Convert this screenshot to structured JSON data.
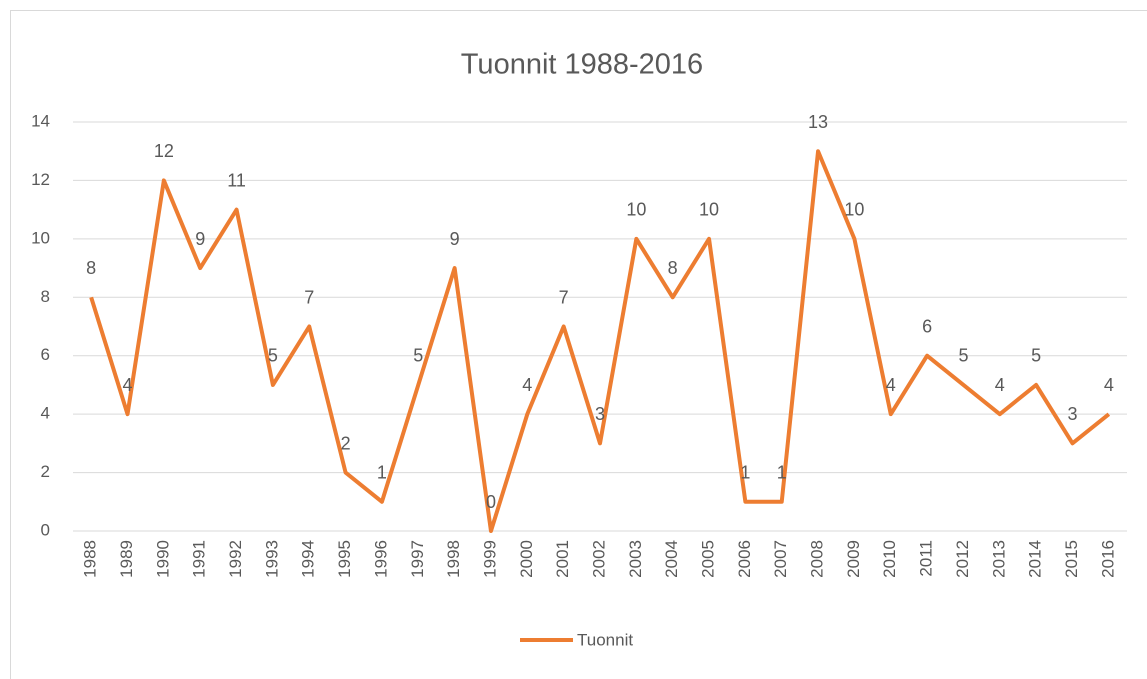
{
  "chart_data": {
    "type": "line",
    "title": "Tuonnit 1988-2016",
    "categories": [
      "1988",
      "1989",
      "1990",
      "1991",
      "1992",
      "1993",
      "1994",
      "1995",
      "1996",
      "1997",
      "1998",
      "1999",
      "2000",
      "2001",
      "2002",
      "2003",
      "2004",
      "2005",
      "2006",
      "2007",
      "2008",
      "2009",
      "2010",
      "2011",
      "2012",
      "2013",
      "2014",
      "2015",
      "2016"
    ],
    "series": [
      {
        "name": "Tuonnit",
        "color": "#ED7D31",
        "values": [
          8,
          4,
          12,
          9,
          11,
          5,
          7,
          2,
          1,
          5,
          9,
          0,
          4,
          7,
          3,
          10,
          8,
          10,
          1,
          1,
          13,
          10,
          4,
          6,
          5,
          4,
          5,
          3,
          4
        ]
      }
    ],
    "ylim": [
      0,
      14
    ],
    "yticks": [
      0,
      2,
      4,
      6,
      8,
      10,
      12,
      14
    ],
    "grid": true,
    "legend": "bottom"
  }
}
